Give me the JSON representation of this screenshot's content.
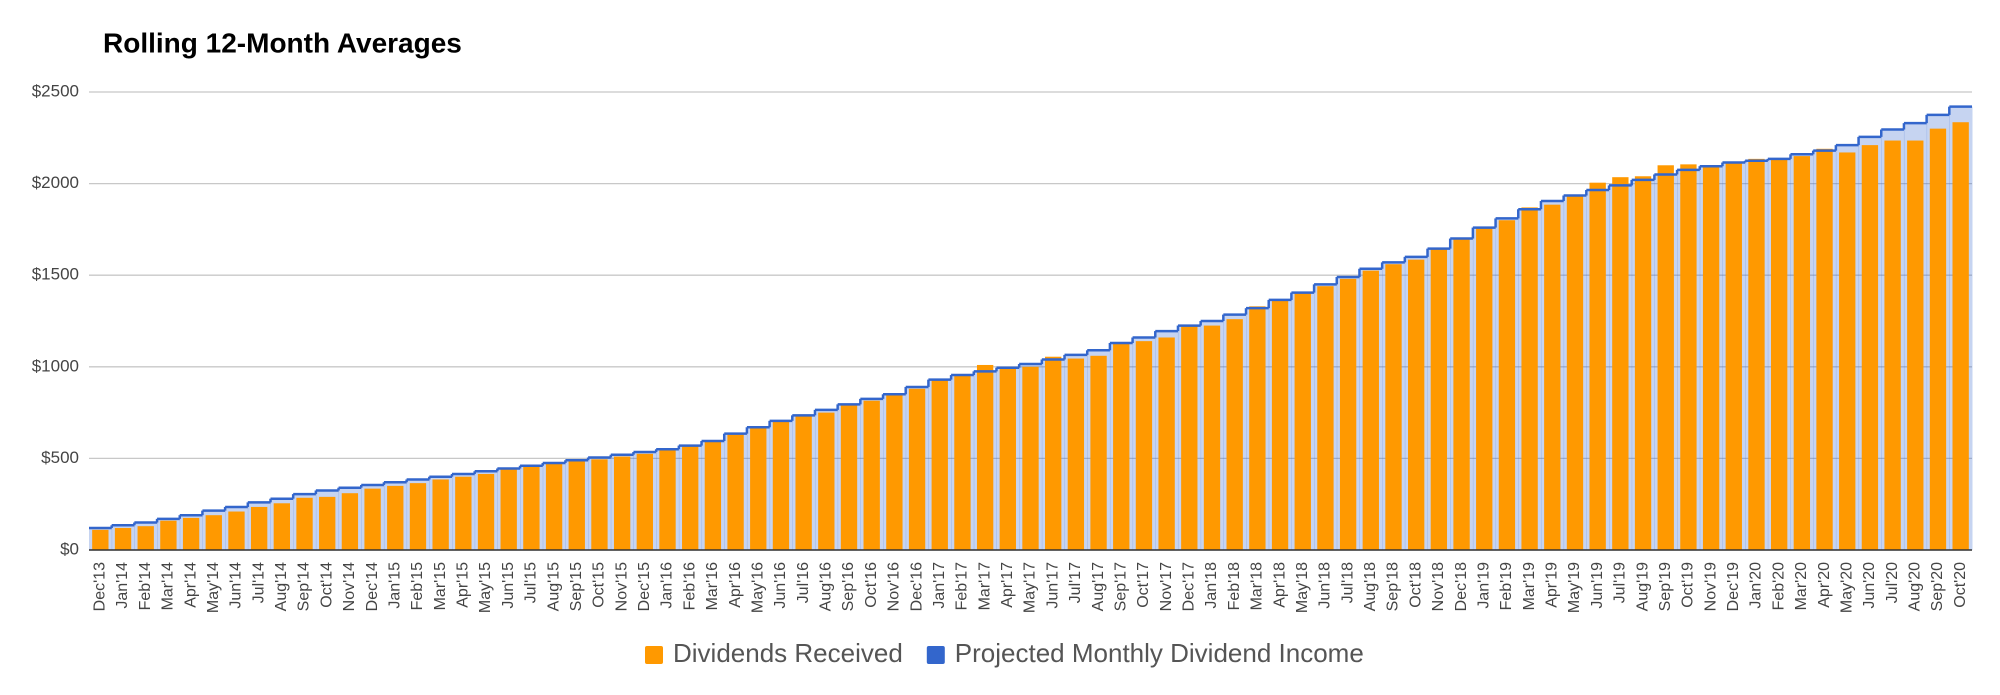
{
  "chart_data": {
    "type": "bar",
    "title": "Rolling 12-Month Averages",
    "categories": [
      "Dec'13",
      "Jan'14",
      "Feb'14",
      "Mar'14",
      "Apr'14",
      "May'14",
      "Jun'14",
      "Jul'14",
      "Aug'14",
      "Sep'14",
      "Oct'14",
      "Nov'14",
      "Dec'14",
      "Jan'15",
      "Feb'15",
      "Mar'15",
      "Apr'15",
      "May'15",
      "Jun'15",
      "Jul'15",
      "Aug'15",
      "Sep'15",
      "Oct'15",
      "Nov'15",
      "Dec'15",
      "Jan'16",
      "Feb'16",
      "Mar'16",
      "Apr'16",
      "May'16",
      "Jun'16",
      "Jul'16",
      "Aug'16",
      "Sep'16",
      "Oct'16",
      "Nov'16",
      "Dec'16",
      "Jan'17",
      "Feb'17",
      "Mar'17",
      "Apr'17",
      "May'17",
      "Jun'17",
      "Jul'17",
      "Aug'17",
      "Sep'17",
      "Oct'17",
      "Nov'17",
      "Dec'17",
      "Jan'18",
      "Feb'18",
      "Mar'18",
      "Apr'18",
      "May'18",
      "Jun'18",
      "Jul'18",
      "Aug'18",
      "Sep'18",
      "Oct'18",
      "Nov'18",
      "Dec'18",
      "Jan'19",
      "Feb'19",
      "Mar'19",
      "Apr'19",
      "May'19",
      "Jun'19",
      "Jul'19",
      "Aug'19",
      "Sep'19",
      "Oct'19",
      "Nov'19",
      "Dec'19",
      "Jan'20",
      "Feb'20",
      "Mar'20",
      "Apr'20",
      "May'20",
      "Jun'20",
      "Jul'20",
      "Aug'20",
      "Sep'20",
      "Oct'20"
    ],
    "series": [
      {
        "name": "Dividends Received",
        "type": "bar",
        "color": "#ff9900",
        "values": [
          110,
          120,
          130,
          160,
          175,
          190,
          210,
          235,
          255,
          285,
          290,
          310,
          335,
          350,
          365,
          385,
          400,
          415,
          450,
          460,
          470,
          490,
          495,
          510,
          525,
          550,
          565,
          600,
          630,
          665,
          700,
          740,
          750,
          790,
          815,
          845,
          880,
          925,
          950,
          1010,
          990,
          1000,
          1055,
          1045,
          1060,
          1130,
          1140,
          1160,
          1225,
          1225,
          1260,
          1330,
          1370,
          1400,
          1440,
          1480,
          1525,
          1560,
          1585,
          1645,
          1700,
          1755,
          1800,
          1870,
          1885,
          1930,
          2005,
          2035,
          2040,
          2100,
          2105,
          2090,
          2110,
          2135,
          2130,
          2150,
          2190,
          2170,
          2210,
          2235,
          2235,
          2300,
          2335
        ]
      },
      {
        "name": "Projected Monthly Dividend Income",
        "type": "steppedArea",
        "color": "#3366cc",
        "values": [
          120,
          135,
          150,
          170,
          190,
          215,
          235,
          260,
          280,
          305,
          325,
          340,
          355,
          370,
          385,
          400,
          415,
          430,
          445,
          460,
          475,
          490,
          505,
          520,
          535,
          550,
          570,
          595,
          635,
          670,
          705,
          735,
          765,
          795,
          825,
          850,
          890,
          930,
          955,
          975,
          995,
          1015,
          1040,
          1065,
          1090,
          1130,
          1160,
          1195,
          1225,
          1250,
          1285,
          1320,
          1365,
          1405,
          1450,
          1490,
          1535,
          1570,
          1600,
          1645,
          1700,
          1760,
          1810,
          1860,
          1905,
          1935,
          1965,
          1990,
          2020,
          2050,
          2075,
          2095,
          2115,
          2125,
          2135,
          2160,
          2180,
          2210,
          2255,
          2295,
          2330,
          2375,
          2420
        ]
      }
    ],
    "ylim": [
      0,
      2500
    ],
    "yticks": [
      {
        "value": 0,
        "label": "$0"
      },
      {
        "value": 500,
        "label": "$500"
      },
      {
        "value": 1000,
        "label": "$1000"
      },
      {
        "value": 1500,
        "label": "$1500"
      },
      {
        "value": 2000,
        "label": "$2000"
      },
      {
        "value": 2500,
        "label": "$2500"
      }
    ],
    "grid": true,
    "legend": "bottom"
  }
}
